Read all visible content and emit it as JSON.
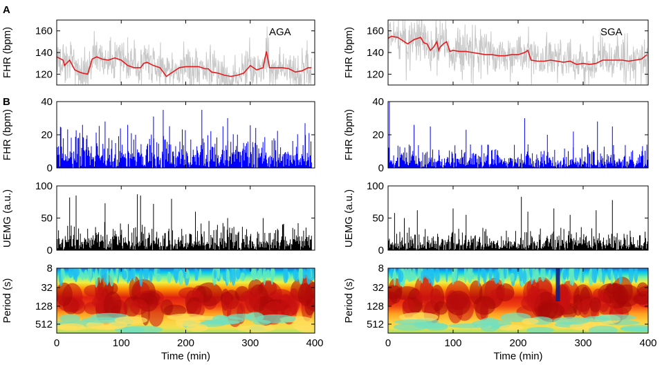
{
  "chart_data": {
    "type": "multi-panel time series and wavelet spectrogram",
    "panel_labels": [
      "A",
      "B"
    ],
    "columns": [
      {
        "group": "AGA",
        "x_ticks": [
          "0",
          "100",
          "200",
          "300",
          "400"
        ],
        "xlabel": "Time (min)",
        "xlim": [
          0,
          400
        ],
        "rows": [
          {
            "type": "line",
            "ylabel": "FHR (bpm)",
            "ylim": [
              110,
              170
            ],
            "yticks": [
              120,
              140,
              160
            ],
            "annotation": "AGA",
            "series": [
              {
                "name": "raw FHR",
                "color": "#c8c8c8",
                "values_note": "noisy trace ~110-165 bpm"
              },
              {
                "name": "baseline FHR",
                "color": "#e41a1c",
                "x": [
                  0,
                  10,
                  12,
                  20,
                  28,
                  35,
                  40,
                  48,
                  55,
                  62,
                  70,
                  80,
                  90,
                  100,
                  110,
                  120,
                  130,
                  135,
                  140,
                  150,
                  160,
                  165,
                  170,
                  180,
                  190,
                  200,
                  210,
                  220,
                  230,
                  235,
                  240,
                  250,
                  260,
                  270,
                  280,
                  290,
                  300,
                  310,
                  320,
                  325,
                  330,
                  340,
                  350,
                  360,
                  370,
                  380,
                  390,
                  395
                ],
                "y": [
                  136,
                  133,
                  128,
                  133,
                  124,
                  122,
                  121,
                  120,
                  134,
                  136,
                  134,
                  133,
                  135,
                  133,
                  128,
                  126,
                  126,
                  130,
                  131,
                  128,
                  126,
                  122,
                  118,
                  122,
                  126,
                  127,
                  127,
                  127,
                  125,
                  125,
                  122,
                  121,
                  119,
                  118,
                  119,
                  121,
                  128,
                  124,
                  126,
                  141,
                  126,
                  126,
                  126,
                  125,
                  122,
                  123,
                  126,
                  126
                ]
              }
            ]
          },
          {
            "type": "bar",
            "ylabel": "FHR (bpm)",
            "ylim": [
              0,
              40
            ],
            "yticks": [
              0,
              20,
              40
            ],
            "series": [
              {
                "name": "FHR variability",
                "color": "#0000ff",
                "peaks": [
                  [
                    40,
                    26
                  ],
                  [
                    75,
                    28
                  ],
                  [
                    110,
                    26
                  ],
                  [
                    150,
                    31
                  ],
                  [
                    165,
                    35
                  ],
                  [
                    225,
                    35
                  ],
                  [
                    265,
                    30
                  ],
                  [
                    385,
                    27
                  ]
                ],
                "typical_max": 22
              }
            ]
          },
          {
            "type": "bar",
            "ylabel": "UEMG (a.u.)",
            "ylim": [
              0,
              100
            ],
            "yticks": [
              0,
              50,
              100
            ],
            "series": [
              {
                "name": "UEMG",
                "color": "#000000",
                "peaks": [
                  [
                    20,
                    82
                  ],
                  [
                    30,
                    85
                  ],
                  [
                    75,
                    73
                  ],
                  [
                    125,
                    87
                  ],
                  [
                    130,
                    85
                  ],
                  [
                    150,
                    72
                  ],
                  [
                    178,
                    80
                  ],
                  [
                    215,
                    60
                  ],
                  [
                    265,
                    50
                  ],
                  [
                    320,
                    50
                  ],
                  [
                    350,
                    40
                  ]
                ],
                "typical_max": 38
              }
            ]
          },
          {
            "type": "heatmap",
            "ylabel": "Period (s)",
            "yticks": [
              "8",
              "32",
              "128",
              "512"
            ],
            "colormap": "jet",
            "note": "wavelet power, strongest at 32-256 s periods"
          }
        ]
      },
      {
        "group": "SGA",
        "x_ticks": [
          "0",
          "100",
          "200",
          "300",
          "400"
        ],
        "xlabel": "Time (min)",
        "xlim": [
          0,
          400
        ],
        "rows": [
          {
            "type": "line",
            "ylabel": "FHR (bpm)",
            "ylim": [
              110,
              170
            ],
            "yticks": [
              120,
              140,
              160
            ],
            "annotation": "SGA",
            "series": [
              {
                "name": "raw FHR",
                "color": "#c8c8c8",
                "values_note": "noisy trace ~110-170 bpm"
              },
              {
                "name": "baseline FHR",
                "color": "#e41a1c",
                "x": [
                  0,
                  5,
                  15,
                  25,
                  30,
                  40,
                  50,
                  55,
                  60,
                  65,
                  70,
                  75,
                  78,
                  80,
                  85,
                  90,
                  95,
                  100,
                  110,
                  120,
                  130,
                  140,
                  150,
                  160,
                  170,
                  180,
                  190,
                  200,
                  210,
                  215,
                  220,
                  230,
                  240,
                  250,
                  260,
                  270,
                  280,
                  290,
                  300,
                  310,
                  320,
                  330,
                  340,
                  350,
                  360,
                  370,
                  380,
                  390,
                  398
                ],
                "y": [
                  153,
                  155,
                  154,
                  150,
                  148,
                  152,
                  154,
                  149,
                  148,
                  142,
                  145,
                  150,
                  142,
                  145,
                  148,
                  150,
                  141,
                  142,
                  141,
                  141,
                  140,
                  139,
                  138,
                  138,
                  137,
                  137,
                  138,
                  138,
                  140,
                  142,
                  133,
                  132,
                  132,
                  133,
                  132,
                  131,
                  132,
                  129,
                  130,
                  129,
                  130,
                  133,
                  133,
                  133,
                  133,
                  132,
                  133,
                  134,
                  138
                ]
              }
            ]
          },
          {
            "type": "bar",
            "ylabel": "FHR (bpm)",
            "ylim": [
              0,
              40
            ],
            "yticks": [
              0,
              20,
              40
            ],
            "series": [
              {
                "name": "FHR variability",
                "color": "#0000ff",
                "peaks": [
                  [
                    2,
                    40
                  ],
                  [
                    40,
                    26
                  ],
                  [
                    65,
                    25
                  ],
                  [
                    120,
                    23
                  ],
                  [
                    210,
                    30
                  ],
                  [
                    245,
                    20
                  ],
                  [
                    285,
                    22
                  ],
                  [
                    322,
                    28
                  ],
                  [
                    345,
                    25
                  ]
                ],
                "typical_max": 12
              }
            ]
          },
          {
            "type": "bar",
            "ylabel": "UEMG (a.u.)",
            "ylim": [
              0,
              100
            ],
            "yticks": [
              0,
              50,
              100
            ],
            "series": [
              {
                "name": "UEMG",
                "color": "#000000",
                "peaks": [
                  [
                    10,
                    58
                  ],
                  [
                    25,
                    50
                  ],
                  [
                    45,
                    62
                  ],
                  [
                    100,
                    65
                  ],
                  [
                    120,
                    55
                  ],
                  [
                    205,
                    83
                  ],
                  [
                    215,
                    60
                  ],
                  [
                    255,
                    65
                  ],
                  [
                    280,
                    55
                  ],
                  [
                    320,
                    62
                  ],
                  [
                    345,
                    78
                  ]
                ],
                "typical_max": 30
              }
            ]
          },
          {
            "type": "heatmap",
            "ylabel": "Period (s)",
            "yticks": [
              "8",
              "32",
              "128",
              "512"
            ],
            "colormap": "jet",
            "note": "wavelet power, band near 128 s at 255-265 min"
          }
        ]
      }
    ]
  }
}
